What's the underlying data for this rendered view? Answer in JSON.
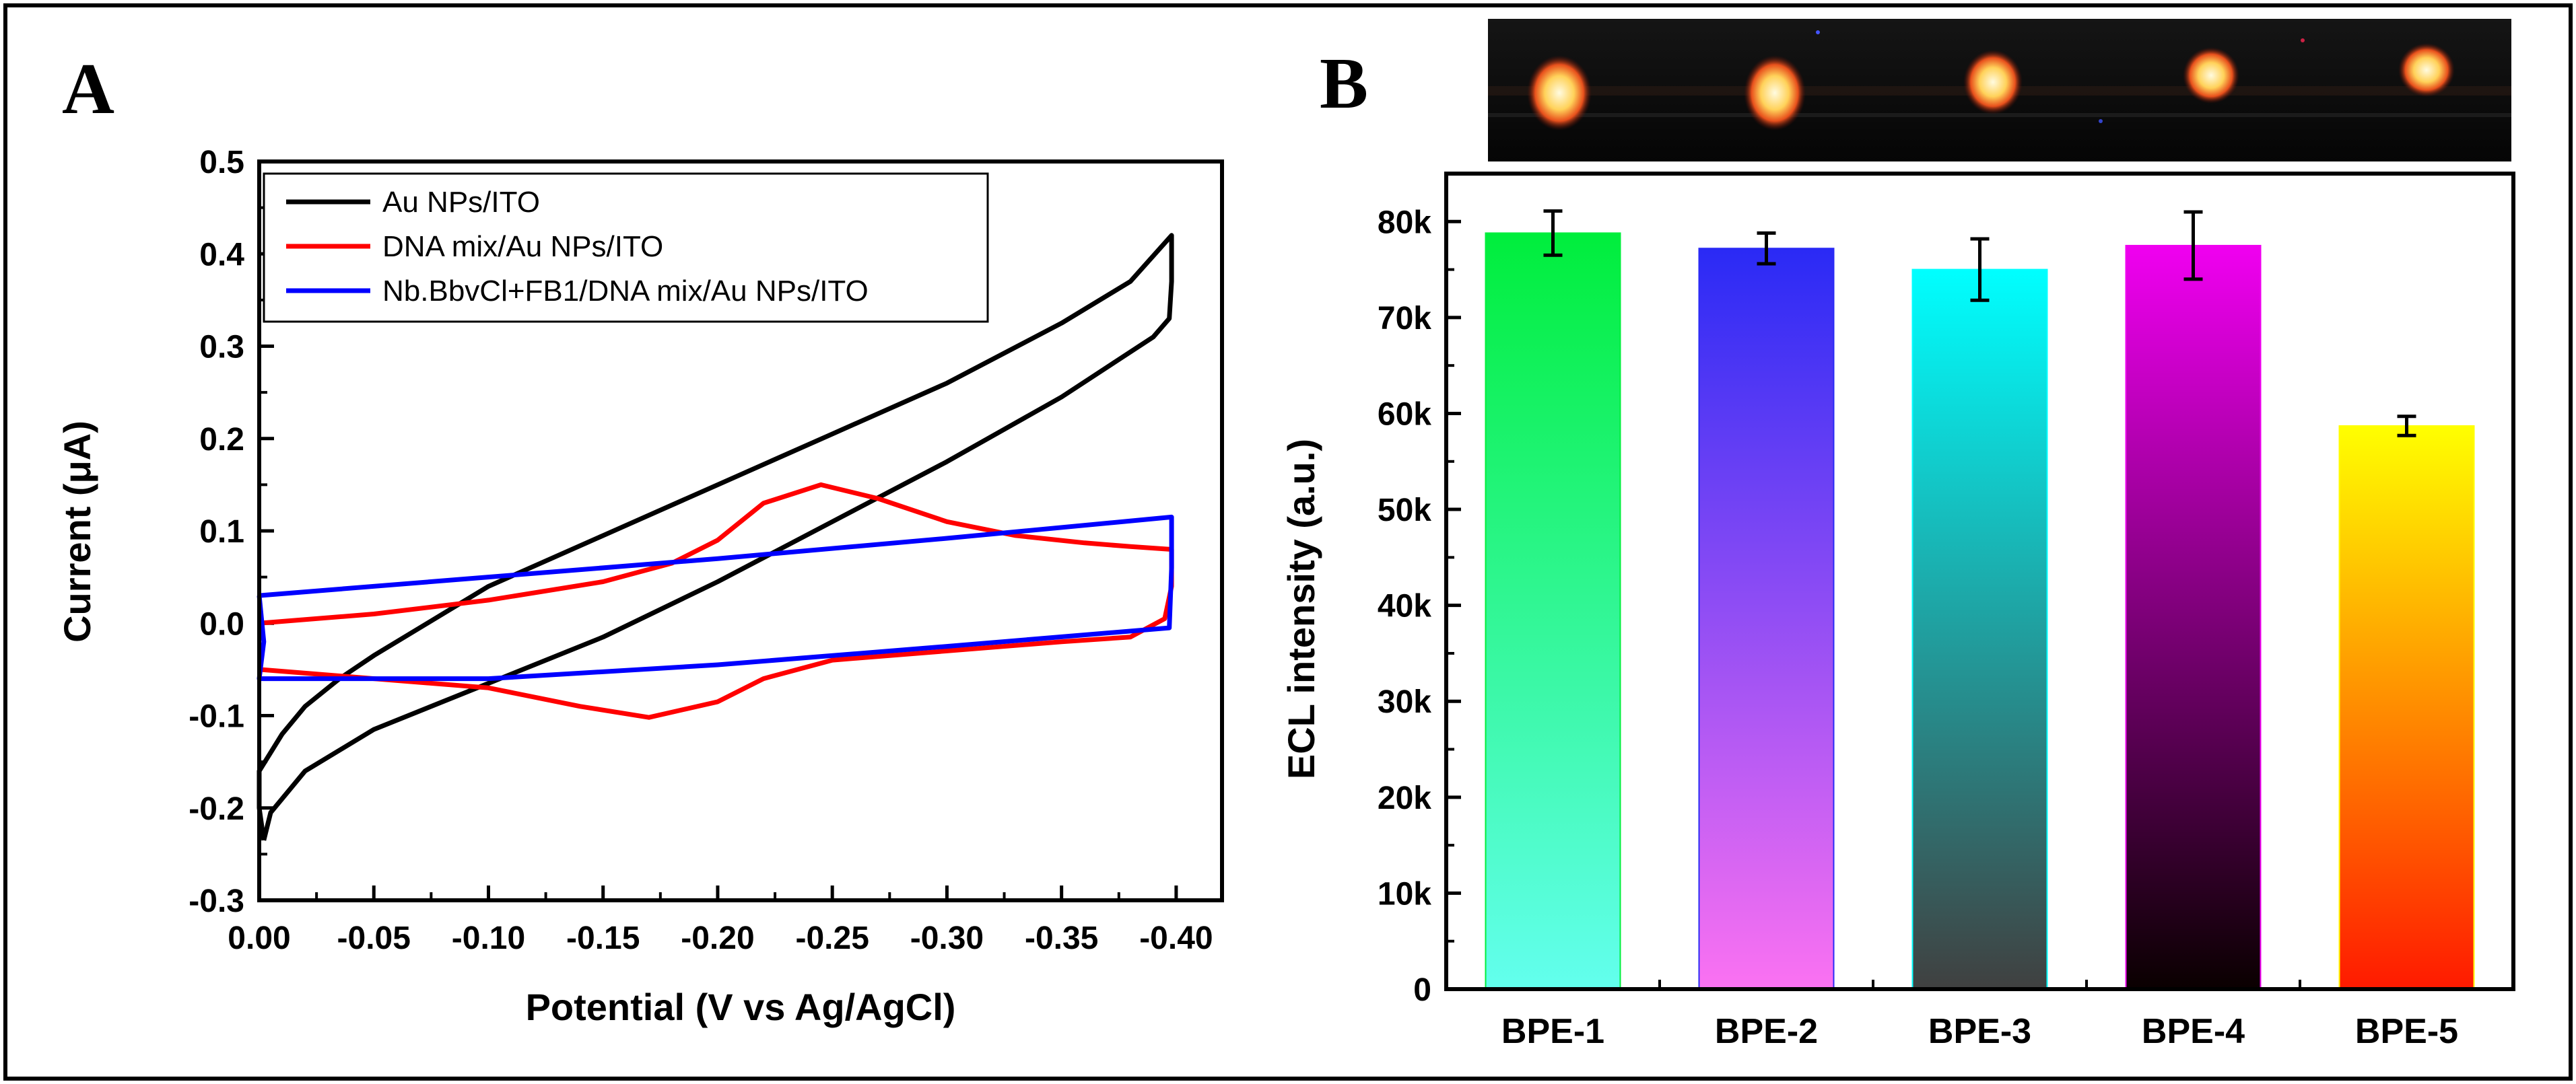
{
  "figure": {
    "panels": [
      "A",
      "B"
    ]
  },
  "chart_data": [
    {
      "panel": "A",
      "type": "line",
      "xlabel": "Potential (V vs Ag/AgCl)",
      "ylabel": "Current (μA)",
      "xlim": [
        0.0,
        -0.42
      ],
      "ylim": [
        -0.3,
        0.5
      ],
      "xticks": [
        "0.00",
        "-0.05",
        "-0.10",
        "-0.15",
        "-0.20",
        "-0.25",
        "-0.30",
        "-0.35",
        "-0.40"
      ],
      "yticks": [
        "-0.3",
        "-0.2",
        "-0.1",
        "0.0",
        "0.1",
        "0.2",
        "0.3",
        "0.4",
        "0.5"
      ],
      "legend_location": "top-left",
      "series": [
        {
          "name": "Au NPs/ITO",
          "color": "#000000",
          "points": [
            [
              -0.002,
              -0.235
            ],
            [
              0.0,
              -0.2
            ],
            [
              0.0,
              -0.16
            ],
            [
              -0.01,
              -0.12
            ],
            [
              -0.02,
              -0.09
            ],
            [
              -0.035,
              -0.06
            ],
            [
              -0.05,
              -0.035
            ],
            [
              -0.08,
              0.01
            ],
            [
              -0.1,
              0.04
            ],
            [
              -0.15,
              0.095
            ],
            [
              -0.2,
              0.15
            ],
            [
              -0.25,
              0.205
            ],
            [
              -0.3,
              0.26
            ],
            [
              -0.35,
              0.325
            ],
            [
              -0.38,
              0.37
            ],
            [
              -0.398,
              0.42
            ],
            [
              -0.398,
              0.37
            ],
            [
              -0.397,
              0.33
            ],
            [
              -0.39,
              0.31
            ],
            [
              -0.35,
              0.245
            ],
            [
              -0.3,
              0.175
            ],
            [
              -0.25,
              0.11
            ],
            [
              -0.2,
              0.045
            ],
            [
              -0.15,
              -0.015
            ],
            [
              -0.1,
              -0.065
            ],
            [
              -0.05,
              -0.115
            ],
            [
              -0.02,
              -0.16
            ],
            [
              -0.005,
              -0.205
            ],
            [
              -0.002,
              -0.235
            ]
          ]
        },
        {
          "name": "DNA mix/Au NPs/ITO",
          "color": "#ff0000",
          "points": [
            [
              0.0,
              0.0
            ],
            [
              -0.05,
              0.01
            ],
            [
              -0.1,
              0.025
            ],
            [
              -0.15,
              0.045
            ],
            [
              -0.18,
              0.065
            ],
            [
              -0.2,
              0.09
            ],
            [
              -0.22,
              0.13
            ],
            [
              -0.245,
              0.15
            ],
            [
              -0.27,
              0.135
            ],
            [
              -0.3,
              0.11
            ],
            [
              -0.33,
              0.095
            ],
            [
              -0.36,
              0.087
            ],
            [
              -0.38,
              0.083
            ],
            [
              -0.398,
              0.08
            ],
            [
              -0.398,
              0.04
            ],
            [
              -0.395,
              0.005
            ],
            [
              -0.38,
              -0.015
            ],
            [
              -0.35,
              -0.02
            ],
            [
              -0.3,
              -0.03
            ],
            [
              -0.25,
              -0.04
            ],
            [
              -0.22,
              -0.06
            ],
            [
              -0.2,
              -0.085
            ],
            [
              -0.17,
              -0.102
            ],
            [
              -0.14,
              -0.09
            ],
            [
              -0.1,
              -0.07
            ],
            [
              -0.05,
              -0.06
            ],
            [
              0.0,
              -0.05
            ]
          ]
        },
        {
          "name": "Nb.BbvCl+FB1/DNA mix/Au NPs/ITO",
          "color": "#0000ff",
          "points": [
            [
              0.0,
              0.03
            ],
            [
              -0.1,
              0.05
            ],
            [
              -0.2,
              0.07
            ],
            [
              -0.3,
              0.092
            ],
            [
              -0.398,
              0.115
            ],
            [
              -0.398,
              0.06
            ],
            [
              -0.397,
              -0.005
            ],
            [
              -0.3,
              -0.025
            ],
            [
              -0.2,
              -0.045
            ],
            [
              -0.1,
              -0.06
            ],
            [
              0.0,
              -0.06
            ],
            [
              -0.002,
              -0.02
            ],
            [
              0.0,
              0.03
            ]
          ]
        }
      ]
    },
    {
      "panel": "B",
      "type": "bar",
      "xlabel": "",
      "ylabel": "ECL intensity (a.u.)",
      "ylim": [
        0,
        85000
      ],
      "yticks": [
        "0",
        "10k",
        "20k",
        "30k",
        "40k",
        "50k",
        "60k",
        "70k",
        "80k"
      ],
      "categories": [
        "BPE-1",
        "BPE-2",
        "BPE-3",
        "BPE-4",
        "BPE-5"
      ],
      "values": [
        78800,
        77200,
        75000,
        77500,
        58700
      ],
      "errors": [
        2300,
        1600,
        3200,
        3500,
        1000
      ],
      "bar_gradients": [
        [
          "#00ee3c",
          "#63ffee"
        ],
        [
          "#2a2af5",
          "#fb72f2"
        ],
        [
          "#00ffff",
          "#404040"
        ],
        [
          "#f000f0",
          "#0a0000"
        ],
        [
          "#ffff00",
          "#ff1a00"
        ]
      ],
      "inset_photo": "ECL emission image of five bipolar electrode spots"
    }
  ]
}
